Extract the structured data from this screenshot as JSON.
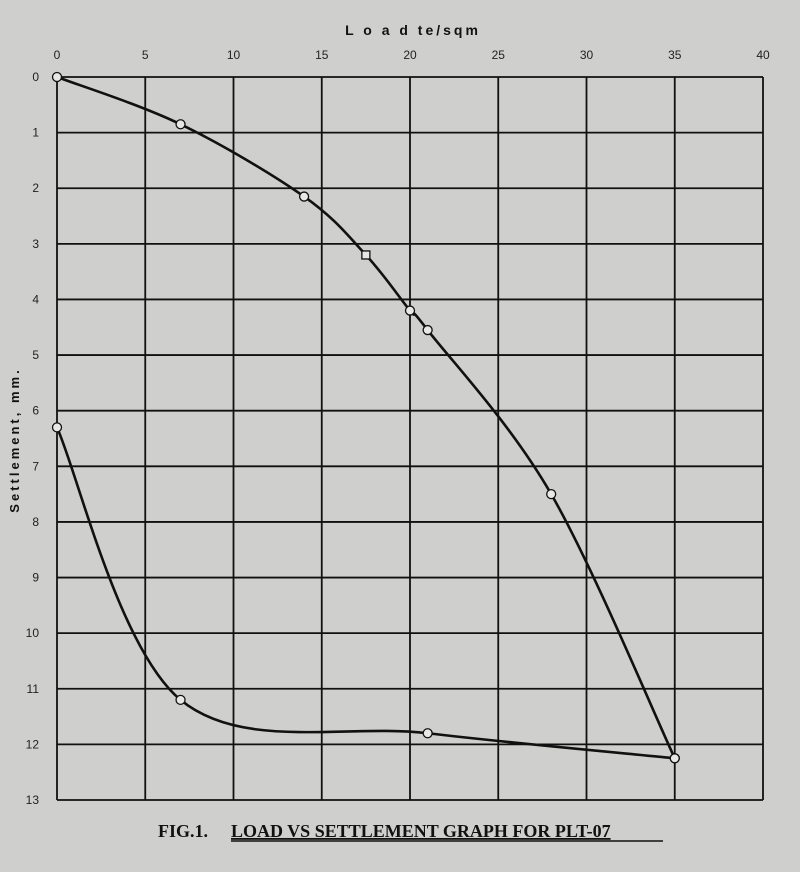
{
  "chart_data": {
    "type": "line",
    "title": "LOAD VS SETTLEMENT GRAPH FOR PLT-07",
    "caption_prefix": "FIG.1.",
    "xlabel": "L o a d  te/sqm",
    "ylabel": "Settlement, mm.",
    "xlim": [
      0,
      40
    ],
    "ylim": [
      0,
      13
    ],
    "y_inverted": true,
    "x_axis_position": "top",
    "x_ticks": [
      "0",
      "5",
      "10",
      "15",
      "20",
      "25",
      "30",
      "35",
      "40"
    ],
    "y_ticks": [
      "0",
      "1",
      "2",
      "3",
      "4",
      "5",
      "6",
      "7",
      "8",
      "9",
      "10",
      "11",
      "12",
      "13"
    ],
    "grid": true,
    "line_color": "#111111",
    "series": [
      {
        "points": [
          {
            "x": 0,
            "y": 0,
            "marker": "circle"
          },
          {
            "x": 7,
            "y": 0.85,
            "marker": "circle"
          },
          {
            "x": 14,
            "y": 2.15,
            "marker": "circle"
          },
          {
            "x": 17.5,
            "y": 3.2,
            "marker": "square"
          },
          {
            "x": 20,
            "y": 4.2,
            "marker": "circle"
          },
          {
            "x": 21,
            "y": 4.55,
            "marker": "circle"
          },
          {
            "x": 28,
            "y": 7.5,
            "marker": "circle"
          },
          {
            "x": 35,
            "y": 12.25,
            "marker": "circle"
          }
        ]
      },
      {
        "points": [
          {
            "x": 35,
            "y": 12.25,
            "marker": "circle"
          },
          {
            "x": 21,
            "y": 11.8,
            "marker": "circle"
          },
          {
            "x": 7,
            "y": 11.2,
            "marker": "circle"
          },
          {
            "x": 0,
            "y": 6.3,
            "marker": "circle"
          }
        ]
      }
    ]
  }
}
